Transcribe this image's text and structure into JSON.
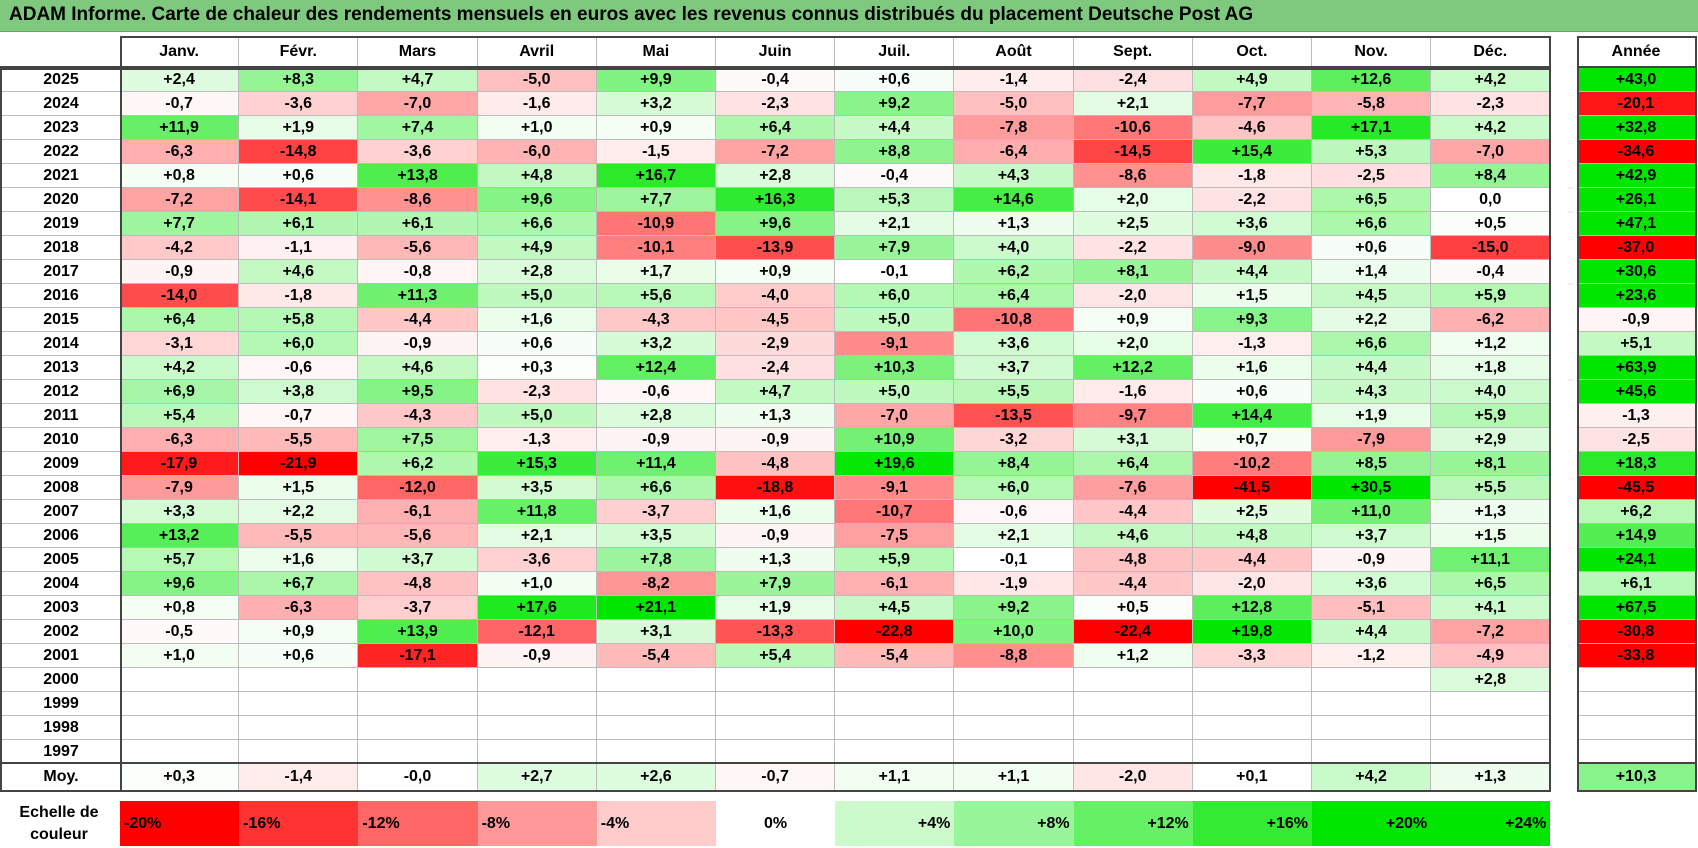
{
  "title": "ADAM Informe. Carte de chaleur des rendements mensuels en euros avec les revenus connus distribués du placement Deutsche Post AG",
  "chart_data": {
    "type": "heatmap",
    "title": "ADAM Informe. Carte de chaleur des rendements mensuels en euros avec les revenus connus distribués du placement Deutsche Post AG",
    "months": [
      "Janv.",
      "Févr.",
      "Mars",
      "Avril",
      "Mai",
      "Juin",
      "Juil.",
      "Août",
      "Sept.",
      "Oct.",
      "Nov.",
      "Déc."
    ],
    "year_header": "Année",
    "avg_label": "Moy.",
    "rows": [
      {
        "year": "2025",
        "values": [
          "+2,4",
          "+8,3",
          "+4,7",
          "-5,0",
          "+9,9",
          "-0,4",
          "+0,6",
          "-1,4",
          "-2,4",
          "+4,9",
          "+12,6",
          "+4,2"
        ],
        "annual": "+43,0"
      },
      {
        "year": "2024",
        "values": [
          "-0,7",
          "-3,6",
          "-7,0",
          "-1,6",
          "+3,2",
          "-2,3",
          "+9,2",
          "-5,0",
          "+2,1",
          "-7,7",
          "-5,8",
          "-2,3"
        ],
        "annual": "-20,1"
      },
      {
        "year": "2023",
        "values": [
          "+11,9",
          "+1,9",
          "+7,4",
          "+1,0",
          "+0,9",
          "+6,4",
          "+4,4",
          "-7,8",
          "-10,6",
          "-4,6",
          "+17,1",
          "+4,2"
        ],
        "annual": "+32,8"
      },
      {
        "year": "2022",
        "values": [
          "-6,3",
          "-14,8",
          "-3,6",
          "-6,0",
          "-1,5",
          "-7,2",
          "+8,8",
          "-6,4",
          "-14,5",
          "+15,4",
          "+5,3",
          "-7,0"
        ],
        "annual": "-34,6"
      },
      {
        "year": "2021",
        "values": [
          "+0,8",
          "+0,6",
          "+13,8",
          "+4,8",
          "+16,7",
          "+2,8",
          "-0,4",
          "+4,3",
          "-8,6",
          "-1,8",
          "-2,5",
          "+8,4"
        ],
        "annual": "+42,9"
      },
      {
        "year": "2020",
        "values": [
          "-7,2",
          "-14,1",
          "-8,6",
          "+9,6",
          "+7,7",
          "+16,3",
          "+5,3",
          "+14,6",
          "+2,0",
          "-2,2",
          "+6,5",
          "0,0"
        ],
        "annual": "+26,1"
      },
      {
        "year": "2019",
        "values": [
          "+7,7",
          "+6,1",
          "+6,1",
          "+6,6",
          "-10,9",
          "+9,6",
          "+2,1",
          "+1,3",
          "+2,5",
          "+3,6",
          "+6,6",
          "+0,5"
        ],
        "annual": "+47,1"
      },
      {
        "year": "2018",
        "values": [
          "-4,2",
          "-1,1",
          "-5,6",
          "+4,9",
          "-10,1",
          "-13,9",
          "+7,9",
          "+4,0",
          "-2,2",
          "-9,0",
          "+0,6",
          "-15,0"
        ],
        "annual": "-37,0"
      },
      {
        "year": "2017",
        "values": [
          "-0,9",
          "+4,6",
          "-0,8",
          "+2,8",
          "+1,7",
          "+0,9",
          "-0,1",
          "+6,2",
          "+8,1",
          "+4,4",
          "+1,4",
          "-0,4"
        ],
        "annual": "+30,6"
      },
      {
        "year": "2016",
        "values": [
          "-14,0",
          "-1,8",
          "+11,3",
          "+5,0",
          "+5,6",
          "-4,0",
          "+6,0",
          "+6,4",
          "-2,0",
          "+1,5",
          "+4,5",
          "+5,9"
        ],
        "annual": "+23,6"
      },
      {
        "year": "2015",
        "values": [
          "+6,4",
          "+5,8",
          "-4,4",
          "+1,6",
          "-4,3",
          "-4,5",
          "+5,0",
          "-10,8",
          "+0,9",
          "+9,3",
          "+2,2",
          "-6,2"
        ],
        "annual": "-0,9"
      },
      {
        "year": "2014",
        "values": [
          "-3,1",
          "+6,0",
          "-0,9",
          "+0,6",
          "+3,2",
          "-2,9",
          "-9,1",
          "+3,6",
          "+2,0",
          "-1,3",
          "+6,6",
          "+1,2"
        ],
        "annual": "+5,1"
      },
      {
        "year": "2013",
        "values": [
          "+4,2",
          "-0,6",
          "+4,6",
          "+0,3",
          "+12,4",
          "-2,4",
          "+10,3",
          "+3,7",
          "+12,2",
          "+1,6",
          "+4,4",
          "+1,8"
        ],
        "annual": "+63,9"
      },
      {
        "year": "2012",
        "values": [
          "+6,9",
          "+3,8",
          "+9,5",
          "-2,3",
          "-0,6",
          "+4,7",
          "+5,0",
          "+5,5",
          "-1,6",
          "+0,6",
          "+4,3",
          "+4,0"
        ],
        "annual": "+45,6"
      },
      {
        "year": "2011",
        "values": [
          "+5,4",
          "-0,7",
          "-4,3",
          "+5,0",
          "+2,8",
          "+1,3",
          "-7,0",
          "-13,5",
          "-9,7",
          "+14,4",
          "+1,9",
          "+5,9"
        ],
        "annual": "-1,3"
      },
      {
        "year": "2010",
        "values": [
          "-6,3",
          "-5,5",
          "+7,5",
          "-1,3",
          "-0,9",
          "-0,9",
          "+10,9",
          "-3,2",
          "+3,1",
          "+0,7",
          "-7,9",
          "+2,9"
        ],
        "annual": "-2,5"
      },
      {
        "year": "2009",
        "values": [
          "-17,9",
          "-21,9",
          "+6,2",
          "+15,3",
          "+11,4",
          "-4,8",
          "+19,6",
          "+8,4",
          "+6,4",
          "-10,2",
          "+8,5",
          "+8,1"
        ],
        "annual": "+18,3"
      },
      {
        "year": "2008",
        "values": [
          "-7,9",
          "+1,5",
          "-12,0",
          "+3,5",
          "+6,6",
          "-18,8",
          "-9,1",
          "+6,0",
          "-7,6",
          "-41,5",
          "+30,5",
          "+5,5"
        ],
        "annual": "-45,5"
      },
      {
        "year": "2007",
        "values": [
          "+3,3",
          "+2,2",
          "-6,1",
          "+11,8",
          "-3,7",
          "+1,6",
          "-10,7",
          "-0,6",
          "-4,4",
          "+2,5",
          "+11,0",
          "+1,3"
        ],
        "annual": "+6,2"
      },
      {
        "year": "2006",
        "values": [
          "+13,2",
          "-5,5",
          "-5,6",
          "+2,1",
          "+3,5",
          "-0,9",
          "-7,5",
          "+2,1",
          "+4,6",
          "+4,8",
          "+3,7",
          "+1,5"
        ],
        "annual": "+14,9"
      },
      {
        "year": "2005",
        "values": [
          "+5,7",
          "+1,6",
          "+3,7",
          "-3,6",
          "+7,8",
          "+1,3",
          "+5,9",
          "-0,1",
          "-4,8",
          "-4,4",
          "-0,9",
          "+11,1"
        ],
        "annual": "+24,1"
      },
      {
        "year": "2004",
        "values": [
          "+9,6",
          "+6,7",
          "-4,8",
          "+1,0",
          "-8,2",
          "+7,9",
          "-6,1",
          "-1,9",
          "-4,4",
          "-2,0",
          "+3,6",
          "+6,5"
        ],
        "annual": "+6,1"
      },
      {
        "year": "2003",
        "values": [
          "+0,8",
          "-6,3",
          "-3,7",
          "+17,6",
          "+21,1",
          "+1,9",
          "+4,5",
          "+9,2",
          "+0,5",
          "+12,8",
          "-5,1",
          "+4,1"
        ],
        "annual": "+67,5"
      },
      {
        "year": "2002",
        "values": [
          "-0,5",
          "+0,9",
          "+13,9",
          "-12,1",
          "+3,1",
          "-13,3",
          "-22,8",
          "+10,0",
          "-22,4",
          "+19,8",
          "+4,4",
          "-7,2"
        ],
        "annual": "-30,8"
      },
      {
        "year": "2001",
        "values": [
          "+1,0",
          "+0,6",
          "-17,1",
          "-0,9",
          "-5,4",
          "+5,4",
          "-5,4",
          "-8,8",
          "+1,2",
          "-3,3",
          "-1,2",
          "-4,9"
        ],
        "annual": "-33,8"
      },
      {
        "year": "2000",
        "values": [
          "",
          "",
          "",
          "",
          "",
          "",
          "",
          "",
          "",
          "",
          "",
          "+2,8"
        ],
        "annual": ""
      },
      {
        "year": "1999",
        "values": [
          "",
          "",
          "",
          "",
          "",
          "",
          "",
          "",
          "",
          "",
          "",
          ""
        ],
        "annual": ""
      },
      {
        "year": "1998",
        "values": [
          "",
          "",
          "",
          "",
          "",
          "",
          "",
          "",
          "",
          "",
          "",
          ""
        ],
        "annual": ""
      },
      {
        "year": "1997",
        "values": [
          "",
          "",
          "",
          "",
          "",
          "",
          "",
          "",
          "",
          "",
          "",
          ""
        ],
        "annual": ""
      }
    ],
    "average": {
      "values": [
        "+0,3",
        "-1,4",
        "-0,0",
        "+2,7",
        "+2,6",
        "-0,7",
        "+1,1",
        "+1,1",
        "-2,0",
        "+0,1",
        "+4,2",
        "+1,3"
      ],
      "annual": "+10,3"
    },
    "scale_label": "Echelle de couleur",
    "scale": [
      "-20%",
      "-16%",
      "-12%",
      "-8%",
      "-4%",
      "0%",
      "+4%",
      "+8%",
      "+12%",
      "+16%",
      "+20%",
      "+24%"
    ],
    "scale_values": [
      -20,
      -16,
      -12,
      -8,
      -4,
      0,
      4,
      8,
      12,
      16,
      20,
      24
    ],
    "colors": {
      "negative": "#ff0000",
      "positive": "#00e000",
      "neutral": "#ffffff",
      "title_bg": "#7fc97f"
    }
  }
}
